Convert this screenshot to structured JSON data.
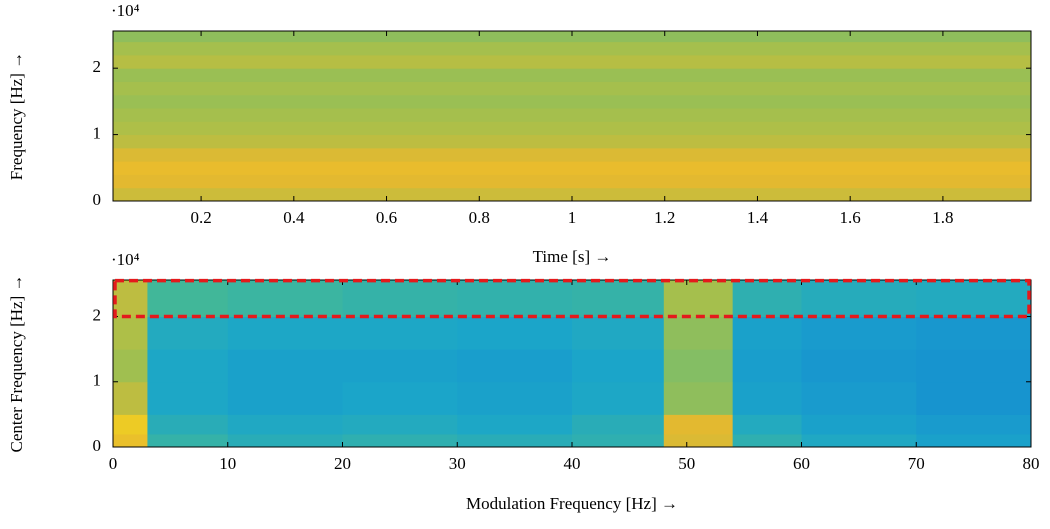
{
  "chart_data": [
    {
      "type": "heatmap",
      "xlabel": "Time [s] →",
      "ylabel": "Frequency [Hz] →",
      "y_scale_label": "·10⁴",
      "xlim": [
        0.01,
        1.99
      ],
      "ylim": [
        0,
        25600
      ],
      "xticks": [
        0.2,
        0.4,
        0.6,
        0.8,
        1,
        1.2,
        1.4,
        1.6,
        1.8
      ],
      "yticks": [
        {
          "value": 0,
          "label": "0"
        },
        {
          "value": 10000,
          "label": "1"
        },
        {
          "value": 20000,
          "label": "2"
        }
      ],
      "x_edges": [
        0.01,
        1.99
      ],
      "y_edges": [
        0,
        2000,
        4000,
        6000,
        8000,
        10000,
        12000,
        14000,
        16000,
        18000,
        20000,
        22000,
        24000,
        25600
      ],
      "z": [
        [
          0.76
        ],
        [
          0.82
        ],
        [
          0.84
        ],
        [
          0.8
        ],
        [
          0.72
        ],
        [
          0.68
        ],
        [
          0.66
        ],
        [
          0.64
        ],
        [
          0.66
        ],
        [
          0.64
        ],
        [
          0.7
        ],
        [
          0.66
        ],
        [
          0.62
        ]
      ],
      "colormap": [
        "#352a87",
        "#0f6ddb",
        "#1ba6c9",
        "#4dbd8a",
        "#a9bf4a",
        "#e8b92e",
        "#f9fb0e"
      ]
    },
    {
      "type": "heatmap",
      "xlabel": "Modulation Frequency [Hz] →",
      "ylabel": "Center Frequency [Hz] →",
      "y_scale_label": "·10⁴",
      "xlim": [
        0,
        80
      ],
      "ylim": [
        0,
        25600
      ],
      "xticks": [
        0,
        10,
        20,
        30,
        40,
        50,
        60,
        70,
        80
      ],
      "yticks": [
        {
          "value": 0,
          "label": "0"
        },
        {
          "value": 10000,
          "label": "1"
        },
        {
          "value": 20000,
          "label": "2"
        }
      ],
      "x_edges": [
        0,
        3,
        10,
        20,
        30,
        40,
        48,
        54,
        60,
        70,
        80
      ],
      "y_edges": [
        0,
        2000,
        5000,
        10000,
        15000,
        20000,
        25600
      ],
      "z": [
        [
          0.85,
          0.42,
          0.38,
          0.4,
          0.38,
          0.4,
          0.8,
          0.4,
          0.35,
          0.32
        ],
        [
          0.88,
          0.38,
          0.35,
          0.36,
          0.34,
          0.38,
          0.82,
          0.36,
          0.32,
          0.3
        ],
        [
          0.72,
          0.34,
          0.32,
          0.33,
          0.32,
          0.34,
          0.62,
          0.32,
          0.3,
          0.28
        ],
        [
          0.65,
          0.34,
          0.32,
          0.32,
          0.31,
          0.33,
          0.6,
          0.31,
          0.29,
          0.28
        ],
        [
          0.68,
          0.36,
          0.34,
          0.34,
          0.33,
          0.35,
          0.62,
          0.32,
          0.3,
          0.29
        ],
        [
          0.72,
          0.46,
          0.44,
          0.42,
          0.41,
          0.42,
          0.66,
          0.4,
          0.37,
          0.36
        ]
      ],
      "colormap": [
        "#352a87",
        "#0f6ddb",
        "#1ba6c9",
        "#4dbd8a",
        "#a9bf4a",
        "#e8b92e",
        "#f9fb0e"
      ],
      "box": {
        "x": [
          0,
          80
        ],
        "y": [
          20000,
          25500
        ],
        "color": "#e41a1c"
      }
    }
  ]
}
